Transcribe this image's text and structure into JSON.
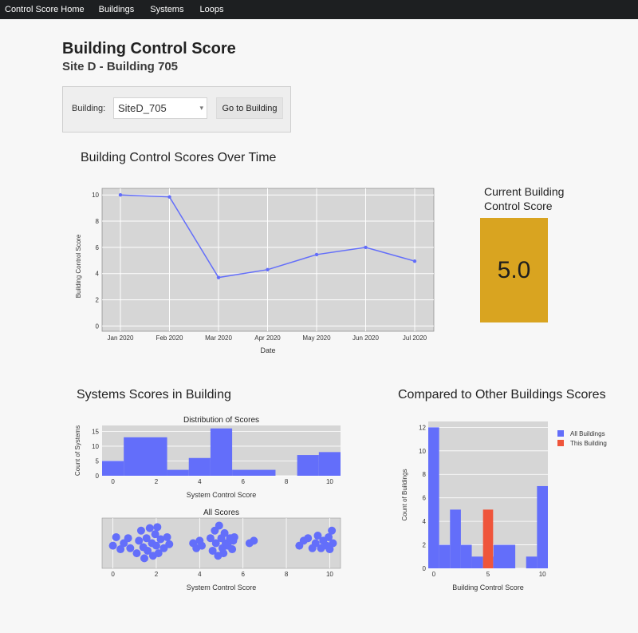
{
  "nav": {
    "brand": "Control Score Home",
    "items": [
      "Buildings",
      "Systems",
      "Loops"
    ]
  },
  "page": {
    "title": "Building Control Score",
    "subtitle": "Site D - Building 705"
  },
  "selector": {
    "label": "Building:",
    "value": "SiteD_705",
    "button": "Go to Building"
  },
  "current_score": {
    "title_line1": "Current Building",
    "title_line2": "Control Score",
    "value": "5.0",
    "color": "#d9a420"
  },
  "sections": {
    "over_time": "Building Control Scores Over Time",
    "systems": "Systems Scores in Building",
    "compared": "Compared to Other Buildings Scores"
  },
  "chart_data": [
    {
      "type": "line",
      "xlabel": "Date",
      "ylabel": "Building Control Score",
      "x": [
        "Jan 2020",
        "Feb 2020",
        "Mar 2020",
        "Apr 2020",
        "May 2020",
        "Jun 2020",
        "Jul 2020"
      ],
      "values": [
        10.0,
        9.85,
        3.7,
        4.3,
        5.45,
        6.0,
        4.95
      ],
      "yticks": [
        0,
        2,
        4,
        6,
        8,
        10
      ],
      "ylim": [
        -0.4,
        10.5
      ],
      "color": "#636efa"
    },
    {
      "type": "bar",
      "title": "Distribution of Scores",
      "xlabel": "System Control Score",
      "ylabel": "Count of Systems",
      "bins": [
        {
          "x0": -0.5,
          "x1": 0.5,
          "count": 5
        },
        {
          "x0": 0.5,
          "x1": 2.5,
          "count": 13
        },
        {
          "x0": 2.5,
          "x1": 3.5,
          "count": 2
        },
        {
          "x0": 3.5,
          "x1": 4.5,
          "count": 6
        },
        {
          "x0": 4.5,
          "x1": 5.5,
          "count": 16
        },
        {
          "x0": 5.5,
          "x1": 7.5,
          "count": 2
        },
        {
          "x0": 7.5,
          "x1": 8.5,
          "count": 0
        },
        {
          "x0": 8.5,
          "x1": 9.5,
          "count": 7
        },
        {
          "x0": 9.5,
          "x1": 10.5,
          "count": 8
        }
      ],
      "xticks": [
        0,
        2,
        4,
        6,
        8,
        10
      ],
      "yticks": [
        0,
        5,
        10,
        15
      ],
      "xlim": [
        -0.5,
        10.5
      ],
      "ylim": [
        0,
        17
      ],
      "color": "#636efa"
    },
    {
      "type": "scatter",
      "title": "All Scores",
      "xlabel": "System Control Score",
      "xticks": [
        0,
        2,
        4,
        6,
        8,
        10
      ],
      "xlim": [
        -0.5,
        10.5
      ],
      "points": [
        [
          0,
          0.45
        ],
        [
          0.15,
          0.62
        ],
        [
          0.35,
          0.38
        ],
        [
          0.5,
          0.5
        ],
        [
          0.7,
          0.6
        ],
        [
          0.8,
          0.4
        ],
        [
          1.1,
          0.3
        ],
        [
          1.2,
          0.55
        ],
        [
          1.3,
          0.75
        ],
        [
          1.4,
          0.42
        ],
        [
          1.45,
          0.2
        ],
        [
          1.55,
          0.6
        ],
        [
          1.6,
          0.35
        ],
        [
          1.7,
          0.8
        ],
        [
          1.8,
          0.5
        ],
        [
          1.85,
          0.25
        ],
        [
          1.95,
          0.68
        ],
        [
          2.0,
          0.45
        ],
        [
          2.05,
          0.82
        ],
        [
          2.1,
          0.3
        ],
        [
          2.2,
          0.58
        ],
        [
          2.35,
          0.4
        ],
        [
          2.5,
          0.62
        ],
        [
          2.6,
          0.48
        ],
        [
          3.7,
          0.5
        ],
        [
          3.85,
          0.4
        ],
        [
          4.0,
          0.55
        ],
        [
          4.1,
          0.45
        ],
        [
          4.5,
          0.6
        ],
        [
          4.6,
          0.35
        ],
        [
          4.7,
          0.75
        ],
        [
          4.75,
          0.5
        ],
        [
          4.85,
          0.25
        ],
        [
          4.9,
          0.85
        ],
        [
          5.0,
          0.6
        ],
        [
          5.05,
          0.4
        ],
        [
          5.1,
          0.3
        ],
        [
          5.15,
          0.7
        ],
        [
          5.2,
          0.5
        ],
        [
          5.3,
          0.45
        ],
        [
          5.4,
          0.6
        ],
        [
          5.5,
          0.38
        ],
        [
          5.55,
          0.55
        ],
        [
          5.6,
          0.62
        ],
        [
          6.3,
          0.5
        ],
        [
          6.5,
          0.55
        ],
        [
          8.6,
          0.45
        ],
        [
          8.8,
          0.55
        ],
        [
          9.0,
          0.6
        ],
        [
          9.2,
          0.4
        ],
        [
          9.35,
          0.5
        ],
        [
          9.45,
          0.65
        ],
        [
          9.6,
          0.4
        ],
        [
          9.7,
          0.55
        ],
        [
          9.85,
          0.45
        ],
        [
          9.95,
          0.62
        ],
        [
          10.0,
          0.38
        ],
        [
          10.1,
          0.75
        ],
        [
          10.15,
          0.5
        ]
      ],
      "color": "#636efa"
    },
    {
      "type": "bar",
      "xlabel": "Building Control Score",
      "ylabel": "Count of Buildings",
      "legend": [
        "All Buildings",
        "This Building"
      ],
      "legend_position": "top-right",
      "series": [
        {
          "name": "All Buildings",
          "color": "#636efa",
          "bins": [
            {
              "x0": -0.5,
              "x1": 0.5,
              "count": 12
            },
            {
              "x0": 0.5,
              "x1": 1.5,
              "count": 2
            },
            {
              "x0": 1.5,
              "x1": 2.5,
              "count": 5
            },
            {
              "x0": 2.5,
              "x1": 3.5,
              "count": 2
            },
            {
              "x0": 3.5,
              "x1": 4.5,
              "count": 1
            },
            {
              "x0": 4.5,
              "x1": 5.5,
              "count": 1
            },
            {
              "x0": 5.5,
              "x1": 7.5,
              "count": 2
            },
            {
              "x0": 7.5,
              "x1": 8.5,
              "count": 0
            },
            {
              "x0": 8.5,
              "x1": 9.5,
              "count": 1
            },
            {
              "x0": 9.5,
              "x1": 10.5,
              "count": 7
            }
          ]
        },
        {
          "name": "This Building",
          "color": "#ef553b",
          "bins": [
            {
              "x0": 4.5,
              "x1": 5.5,
              "count": 5
            }
          ]
        }
      ],
      "xticks": [
        0,
        5,
        10
      ],
      "yticks": [
        0,
        2,
        4,
        6,
        8,
        10,
        12
      ],
      "xlim": [
        -0.5,
        10.5
      ],
      "ylim": [
        0,
        12.5
      ]
    }
  ]
}
